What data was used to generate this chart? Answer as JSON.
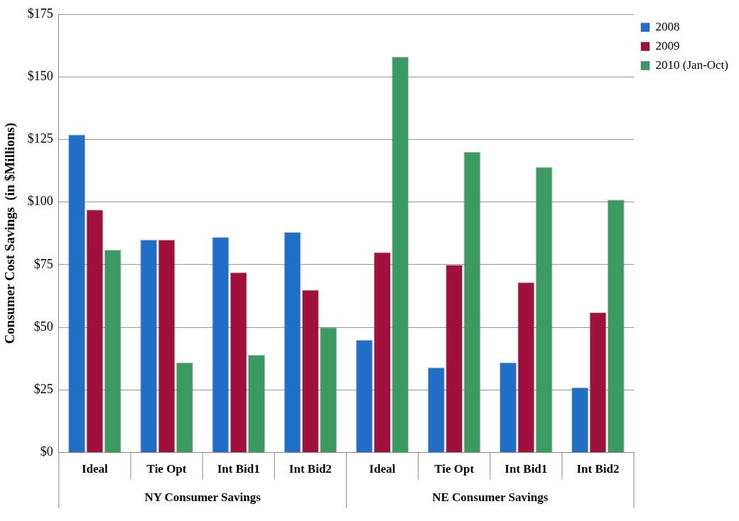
{
  "chart_data": {
    "type": "bar",
    "ylabel": "Consumer Cost Savings  (in $Millions)",
    "categories": [
      "Ideal",
      "Tie Opt",
      "Int Bid1",
      "Int Bid2",
      "Ideal",
      "Tie Opt",
      "Int Bid1",
      "Int Bid2"
    ],
    "series": [
      {
        "name": "2008",
        "color": "#1f6fc6",
        "values": [
          127,
          85,
          86,
          88,
          45,
          34,
          36,
          26
        ]
      },
      {
        "name": "2009",
        "color": "#a0103c",
        "values": [
          97,
          85,
          72,
          65,
          80,
          75,
          68,
          56
        ]
      },
      {
        "name": "2010 (Jan-Oct)",
        "color": "#3a9a60",
        "values": [
          81,
          36,
          39,
          50,
          158,
          120,
          114,
          101
        ]
      }
    ],
    "ylim": [
      0,
      175
    ],
    "yticks": [
      {
        "value": 0,
        "label": "$0"
      },
      {
        "value": 25,
        "label": "$25"
      },
      {
        "value": 50,
        "label": "$50"
      },
      {
        "value": 75,
        "label": "$75"
      },
      {
        "value": 100,
        "label": "$100"
      },
      {
        "value": 125,
        "label": "$125"
      },
      {
        "value": 150,
        "label": "$150"
      },
      {
        "value": 175,
        "label": "$175"
      }
    ],
    "grid": "y",
    "legend": "top right",
    "annotations": [
      "NY Consumer Savings",
      "NE Consumer Savings"
    ]
  }
}
